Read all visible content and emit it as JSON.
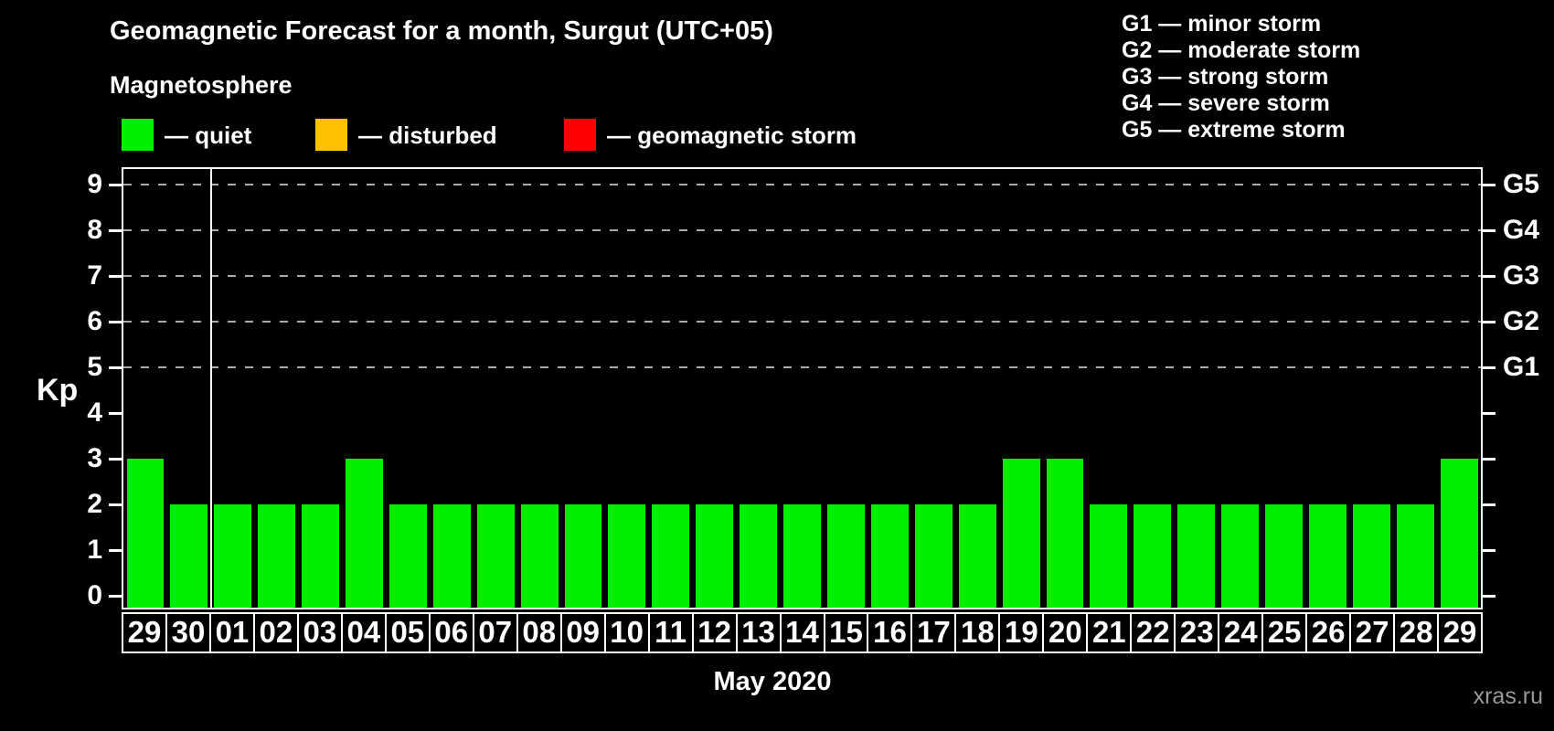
{
  "title": "Geomagnetic Forecast for a month, Surgut (UTC+05)",
  "subtitle": "Magnetosphere",
  "legend": {
    "items": [
      {
        "name": "quiet",
        "label": "— quiet",
        "color": "#00ee00"
      },
      {
        "name": "disturbed",
        "label": "— disturbed",
        "color": "#ffc000"
      },
      {
        "name": "geomagnetic-storm",
        "label": "— geomagnetic storm",
        "color": "#ff0000"
      }
    ]
  },
  "g_scale_legend": [
    "G1 — minor storm",
    "G2 — moderate storm",
    "G3 — strong storm",
    "G4 — severe storm",
    "G5 — extreme storm"
  ],
  "chart_data": {
    "type": "bar",
    "title": "Geomagnetic Forecast for a month, Surgut (UTC+05)",
    "xlabel": "May 2020",
    "ylabel": "Kp",
    "ylim": [
      0,
      9
    ],
    "grid": "dashed horizontal lines at Kp 5-9",
    "legend_position": "top",
    "categories": [
      "29",
      "30",
      "01",
      "02",
      "03",
      "04",
      "05",
      "06",
      "07",
      "08",
      "09",
      "10",
      "11",
      "12",
      "13",
      "14",
      "15",
      "16",
      "17",
      "18",
      "19",
      "20",
      "21",
      "22",
      "23",
      "24",
      "25",
      "26",
      "27",
      "28",
      "29"
    ],
    "values": [
      3,
      2,
      2,
      2,
      2,
      3,
      2,
      2,
      2,
      2,
      2,
      2,
      2,
      2,
      2,
      2,
      2,
      2,
      2,
      2,
      3,
      3,
      2,
      2,
      2,
      2,
      2,
      2,
      2,
      2,
      3
    ],
    "bar_color": "#00ee00",
    "y_ticks_left": [
      0,
      1,
      2,
      3,
      4,
      5,
      6,
      7,
      8,
      9
    ],
    "gridline_kp": [
      5,
      6,
      7,
      8,
      9
    ],
    "g_labels": [
      {
        "kp": 5,
        "label": "G1"
      },
      {
        "kp": 6,
        "label": "G2"
      },
      {
        "kp": 7,
        "label": "G3"
      },
      {
        "kp": 8,
        "label": "G4"
      },
      {
        "kp": 9,
        "label": "G5"
      }
    ],
    "month_separator_after_index": 1
  },
  "watermark": "xras.ru"
}
